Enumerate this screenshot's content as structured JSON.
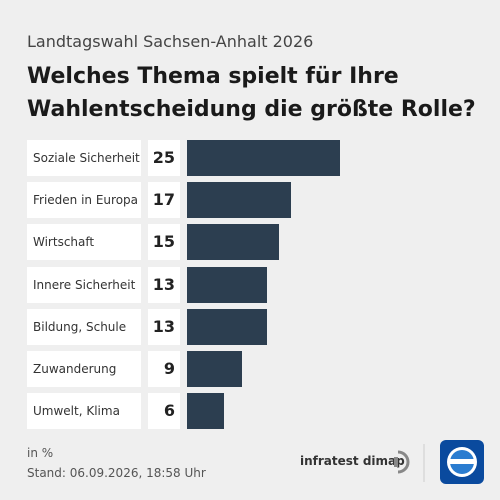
{
  "chart_data": {
    "type": "bar",
    "subtitle": "Landtagswahl Sachsen-Anhalt 2026",
    "title": "Welches Thema spielt für Ihre Wahlentscheidung die größte Rolle?",
    "categories": [
      "Soziale Sicherheit",
      "Frieden in Europa",
      "Wirtschaft",
      "Innere Sicherheit",
      "Bildung, Schule",
      "Zuwanderung",
      "Umwelt, Klima"
    ],
    "values": [
      25,
      17,
      15,
      13,
      13,
      9,
      6
    ],
    "color": "#2c3e50",
    "unit_note": "in %",
    "stand": "Stand:  06.09.2026, 18:58 Uhr",
    "source": "infratest dimap"
  }
}
